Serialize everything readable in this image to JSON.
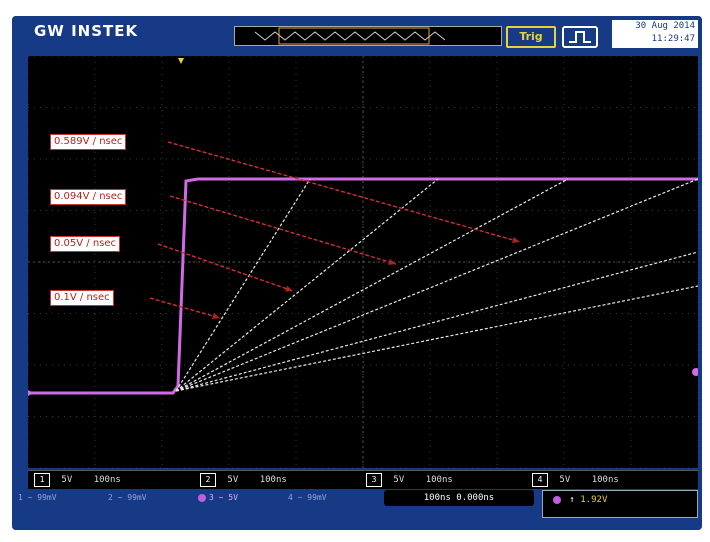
{
  "header": {
    "brand": "GW INSTEK",
    "trigger_status": "Trig",
    "date": "30 Aug 2014",
    "time": "11:29:47"
  },
  "annotations": [
    {
      "text": "0.589V / nsec"
    },
    {
      "text": "0.094V / nsec"
    },
    {
      "text": "0.05V / nsec"
    },
    {
      "text": "0.1V / nsec"
    }
  ],
  "channels": [
    {
      "num": "1",
      "scale": "5V",
      "timebase": "100ns"
    },
    {
      "num": "2",
      "scale": "5V",
      "timebase": "100ns"
    },
    {
      "num": "3",
      "scale": "5V",
      "timebase": "100ns"
    },
    {
      "num": "4",
      "scale": "5V",
      "timebase": "100ns"
    }
  ],
  "bottom": {
    "items": [
      "1 ~ 99mV",
      "2 ~ 99mV",
      "3 ~ 5V",
      "4 ~ 99mV"
    ],
    "timebase": "100ns  0.000ns",
    "trigger": "1.92V"
  },
  "colors": {
    "frame": "#173a86",
    "trace": "#d06ae6",
    "annotation": "#b02222",
    "slope_lines": "#e8e8e8"
  }
}
